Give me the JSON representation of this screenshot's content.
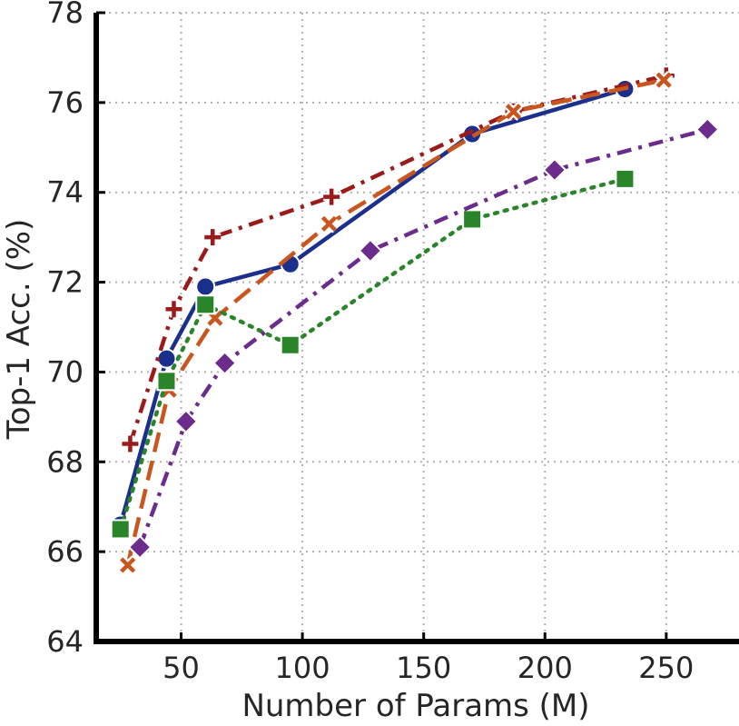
{
  "chart_data": {
    "type": "line",
    "title": "",
    "xlabel": "Number of Params (M)",
    "ylabel": "Top-1 Acc. (%)",
    "xlim": [
      15,
      280
    ],
    "ylim": [
      64,
      78
    ],
    "xticks": [
      50,
      100,
      150,
      200,
      250
    ],
    "yticks": [
      64,
      66,
      68,
      70,
      72,
      74,
      76,
      78
    ],
    "grid": true,
    "legend": "none",
    "series": [
      {
        "name": "series-blue-circle",
        "color": "#1b2f8c",
        "marker": "circle",
        "dash": "solid",
        "x": [
          25,
          44,
          60,
          95,
          170,
          233
        ],
        "y": [
          66.6,
          70.3,
          71.9,
          72.4,
          75.3,
          76.3
        ]
      },
      {
        "name": "series-red-plus",
        "color": "#9b1b1b",
        "marker": "plus",
        "dash": "dashdot",
        "x": [
          29,
          47,
          63,
          112,
          187,
          250
        ],
        "y": [
          68.4,
          71.4,
          73.0,
          73.9,
          75.8,
          76.6
        ]
      },
      {
        "name": "series-orange-x",
        "color": "#c9561e",
        "marker": "x",
        "dash": "dashed",
        "x": [
          28,
          45,
          64,
          111,
          187,
          249
        ],
        "y": [
          65.7,
          69.6,
          71.2,
          73.3,
          75.8,
          76.5
        ]
      },
      {
        "name": "series-green-square",
        "color": "#2a852a",
        "marker": "square",
        "dash": "dotted",
        "x": [
          25,
          44,
          60,
          95,
          170,
          233
        ],
        "y": [
          66.5,
          69.8,
          71.5,
          70.6,
          73.4,
          74.3
        ]
      },
      {
        "name": "series-purple-diamond",
        "color": "#6b2c8c",
        "marker": "diamond",
        "dash": "dashdot",
        "x": [
          33,
          52,
          68,
          128,
          204,
          267
        ],
        "y": [
          66.1,
          68.9,
          70.2,
          72.7,
          74.5,
          75.4
        ]
      }
    ]
  }
}
